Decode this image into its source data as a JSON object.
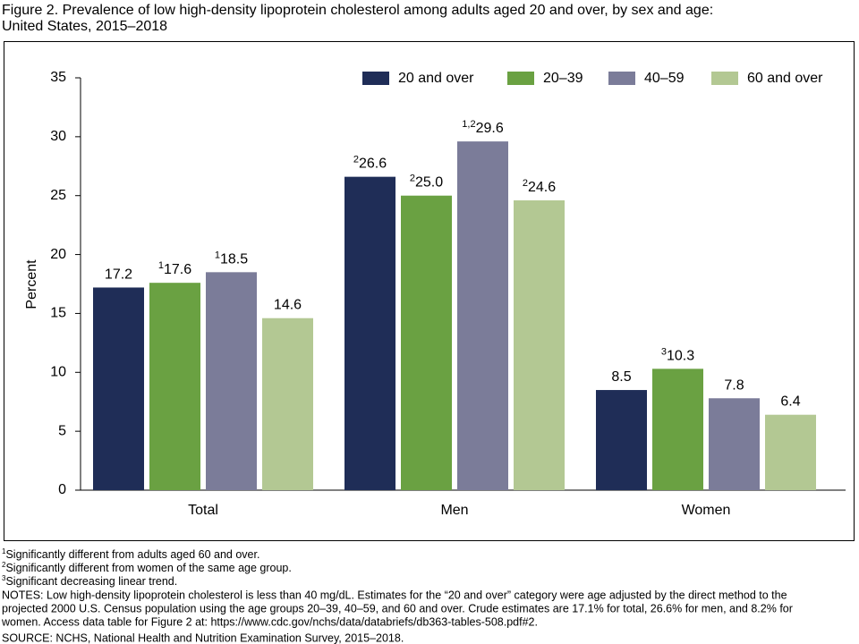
{
  "chart_data": {
    "type": "bar",
    "title": "Figure 2. Prevalence of low high-density lipoprotein cholesterol among adults aged 20 and over, by sex and age:",
    "subtitle": "United States, 2015–2018",
    "y_label": "Percent",
    "categories": [
      "Total",
      "Men",
      "Women"
    ],
    "series": [
      {
        "name": "20 and over",
        "color": "#1f2d57",
        "values": [
          17.2,
          26.6,
          8.5
        ],
        "value_labels": [
          "17.2",
          "26.6",
          "8.5"
        ],
        "label_notes": [
          null,
          "2",
          null
        ]
      },
      {
        "name": "20–39",
        "color": "#6aa142",
        "values": [
          17.6,
          25.0,
          10.3
        ],
        "value_labels": [
          "17.6",
          "25.0",
          "10.3"
        ],
        "label_notes": [
          "1",
          "2",
          "3"
        ]
      },
      {
        "name": "40–59",
        "color": "#7b7c99",
        "values": [
          18.5,
          29.6,
          7.8
        ],
        "value_labels": [
          "18.5",
          "29.6",
          "7.8"
        ],
        "label_notes": [
          "1",
          "1,2",
          null
        ]
      },
      {
        "name": "60 and over",
        "color": "#b3c893",
        "values": [
          14.6,
          24.6,
          6.4
        ],
        "value_labels": [
          "14.6",
          "24.6",
          "6.4"
        ],
        "label_notes": [
          null,
          "2",
          null
        ]
      }
    ],
    "ylim": [
      0,
      35
    ],
    "yticks": [
      0,
      5,
      10,
      15,
      20,
      25,
      30,
      35
    ],
    "grid": false,
    "legend": "top-right",
    "footnotes": [
      {
        "mark": "1",
        "text": "Significantly different from adults aged 60 and over."
      },
      {
        "mark": "2",
        "text": "Significantly different from women of the same age group."
      },
      {
        "mark": "3",
        "text": "Significant decreasing linear trend."
      }
    ],
    "notes": [
      "NOTES: Low high-density lipoprotein cholesterol is less than 40 mg/dL. Estimates for the “20 and over” category were age adjusted by the direct method to the",
      "projected 2000 U.S. Census population using the age groups 20–39, 40–59, and 60 and over. Crude estimates are 17.1% for total, 26.6% for men, and 8.2% for",
      "women. Access data table for Figure 2 at: https://www.cdc.gov/nchs/data/databriefs/db363-tables-508.pdf#2.",
      "SOURCE: NCHS, National Health and Nutrition Examination Survey, 2015–2018."
    ]
  }
}
